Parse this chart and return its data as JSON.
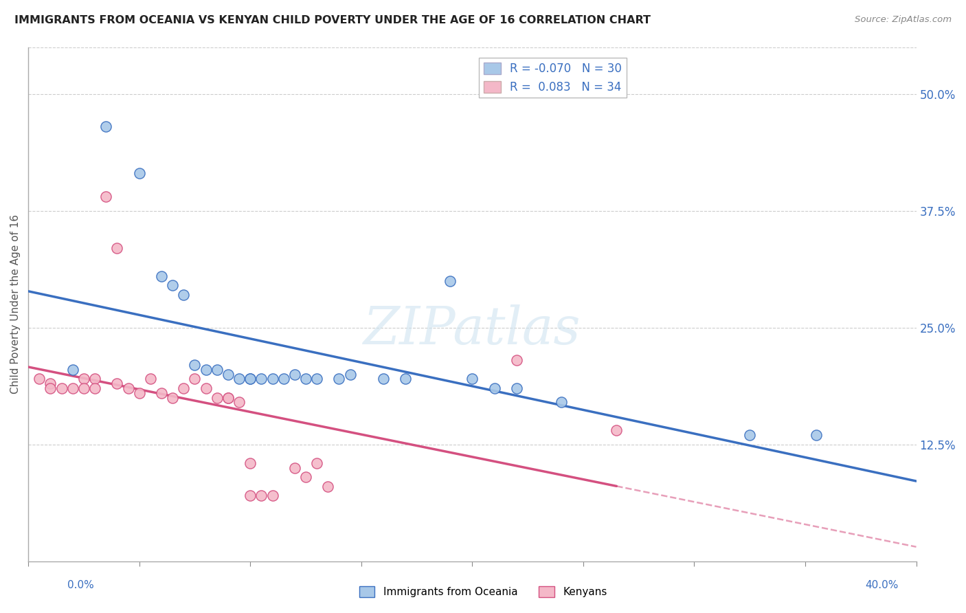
{
  "title": "IMMIGRANTS FROM OCEANIA VS KENYAN CHILD POVERTY UNDER THE AGE OF 16 CORRELATION CHART",
  "source": "Source: ZipAtlas.com",
  "ylabel": "Child Poverty Under the Age of 16",
  "ytick_labels": [
    "12.5%",
    "25.0%",
    "37.5%",
    "50.0%"
  ],
  "ytick_values": [
    0.125,
    0.25,
    0.375,
    0.5
  ],
  "legend1_label": "Immigrants from Oceania",
  "legend2_label": "Kenyans",
  "R1": "-0.070",
  "N1": "30",
  "R2": "0.083",
  "N2": "34",
  "color_blue": "#a8c8e8",
  "color_pink": "#f4b8c8",
  "line_color_blue": "#3a6fc0",
  "line_color_pink": "#d45080",
  "xlim": [
    0.0,
    0.4
  ],
  "ylim": [
    0.0,
    0.55
  ],
  "blue_x": [
    0.02,
    0.035,
    0.05,
    0.06,
    0.065,
    0.07,
    0.075,
    0.08,
    0.085,
    0.09,
    0.095,
    0.1,
    0.1,
    0.105,
    0.11,
    0.115,
    0.12,
    0.125,
    0.13,
    0.14,
    0.145,
    0.16,
    0.17,
    0.19,
    0.2,
    0.21,
    0.22,
    0.24,
    0.325,
    0.355
  ],
  "blue_y": [
    0.205,
    0.465,
    0.415,
    0.305,
    0.295,
    0.285,
    0.21,
    0.205,
    0.205,
    0.2,
    0.195,
    0.195,
    0.195,
    0.195,
    0.195,
    0.195,
    0.2,
    0.195,
    0.195,
    0.195,
    0.2,
    0.195,
    0.195,
    0.3,
    0.195,
    0.185,
    0.185,
    0.17,
    0.135,
    0.135
  ],
  "pink_x": [
    0.005,
    0.01,
    0.01,
    0.015,
    0.02,
    0.025,
    0.025,
    0.03,
    0.03,
    0.035,
    0.04,
    0.04,
    0.045,
    0.05,
    0.055,
    0.06,
    0.065,
    0.07,
    0.075,
    0.08,
    0.085,
    0.09,
    0.09,
    0.095,
    0.1,
    0.1,
    0.105,
    0.11,
    0.12,
    0.125,
    0.13,
    0.135,
    0.22,
    0.265
  ],
  "pink_y": [
    0.195,
    0.19,
    0.185,
    0.185,
    0.185,
    0.195,
    0.185,
    0.195,
    0.185,
    0.39,
    0.335,
    0.19,
    0.185,
    0.18,
    0.195,
    0.18,
    0.175,
    0.185,
    0.195,
    0.185,
    0.175,
    0.175,
    0.175,
    0.17,
    0.105,
    0.07,
    0.07,
    0.07,
    0.1,
    0.09,
    0.105,
    0.08,
    0.215,
    0.14
  ],
  "xtick_positions": [
    0.0,
    0.05,
    0.1,
    0.15,
    0.2,
    0.25,
    0.3,
    0.35,
    0.4
  ]
}
